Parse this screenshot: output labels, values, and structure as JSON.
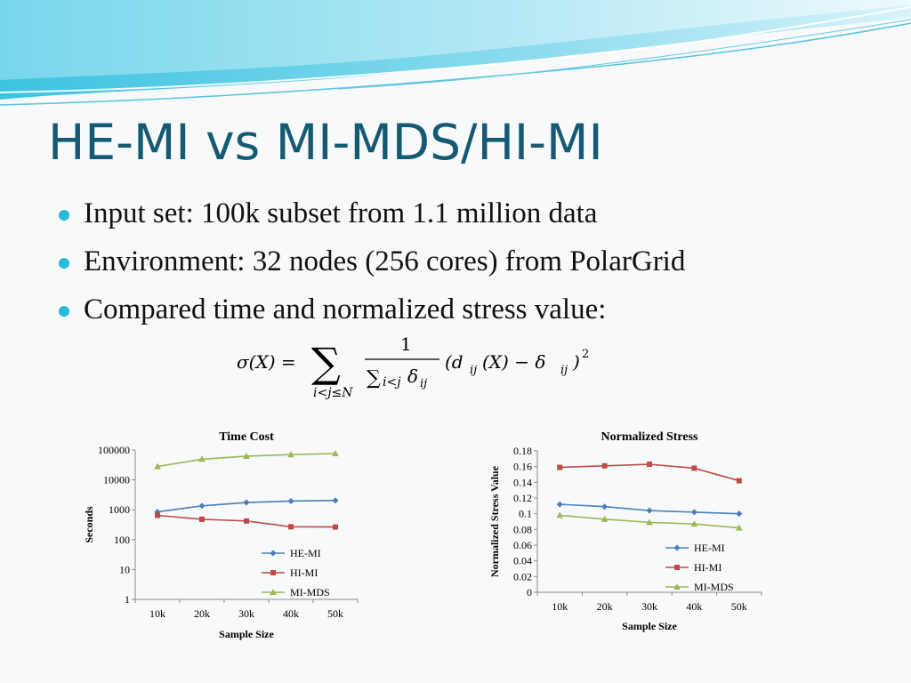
{
  "slide": {
    "title": "HE-MI vs MI-MDS/HI-MI",
    "bullets": [
      "Input set: 100k subset from 1.1 million data",
      "Environment: 32 nodes (256 cores) from PolarGrid",
      "Compared time and normalized stress value:"
    ],
    "formula": {
      "lhs": "σ(X) =",
      "sum_symbol": "∑",
      "sum_sub": "i<j≤N",
      "frac_num": "1",
      "frac_den": "∑",
      "frac_den_sub": "i<j",
      "frac_den_delta": "δ",
      "frac_den_delta_sub": "ij",
      "rhs_open": "(d",
      "rhs_d_sub": "ij",
      "rhs_mid": "(X) − δ",
      "rhs_delta_sub": "ij",
      "rhs_close": ")",
      "rhs_pow": "2"
    }
  },
  "colors": {
    "title": "#155a73",
    "bullet": "#27b9d8",
    "he_mi": "#4a7ebb",
    "hi_mi": "#be4b48",
    "mi_mds": "#98b954"
  },
  "chart_data": [
    {
      "type": "line",
      "title": "Time Cost",
      "xlabel": "Sample Size",
      "ylabel": "Seconds",
      "yscale": "log",
      "ylim": [
        1,
        100000
      ],
      "yticks": [
        "1",
        "10",
        "100",
        "1000",
        "10000",
        "100000"
      ],
      "categories": [
        "10k",
        "20k",
        "30k",
        "40k",
        "50k"
      ],
      "legend": "right-bottom",
      "series": [
        {
          "name": "HE-MI",
          "marker": "diamond",
          "values": [
            850,
            1350,
            1750,
            1950,
            2050
          ]
        },
        {
          "name": "HI-MI",
          "marker": "square",
          "values": [
            650,
            480,
            420,
            270,
            265
          ]
        },
        {
          "name": "MI-MDS",
          "marker": "triangle",
          "values": [
            28000,
            49000,
            62000,
            70000,
            76000
          ]
        }
      ]
    },
    {
      "type": "line",
      "title": "Normalized Stress",
      "xlabel": "Sample Size",
      "ylabel": "Normalized Stress Value",
      "ylim": [
        0,
        0.18
      ],
      "yticks": [
        "0",
        "0.02",
        "0.04",
        "0.06",
        "0.08",
        "0.1",
        "0.12",
        "0.14",
        "0.16",
        "0.18"
      ],
      "categories": [
        "10k",
        "20k",
        "30k",
        "40k",
        "50k"
      ],
      "legend": "right-bottom",
      "series": [
        {
          "name": "HE-MI",
          "marker": "diamond",
          "values": [
            0.112,
            0.109,
            0.104,
            0.102,
            0.1
          ]
        },
        {
          "name": "HI-MI",
          "marker": "square",
          "values": [
            0.159,
            0.161,
            0.163,
            0.158,
            0.142
          ]
        },
        {
          "name": "MI-MDS",
          "marker": "triangle",
          "values": [
            0.098,
            0.093,
            0.089,
            0.087,
            0.082
          ]
        }
      ]
    }
  ]
}
